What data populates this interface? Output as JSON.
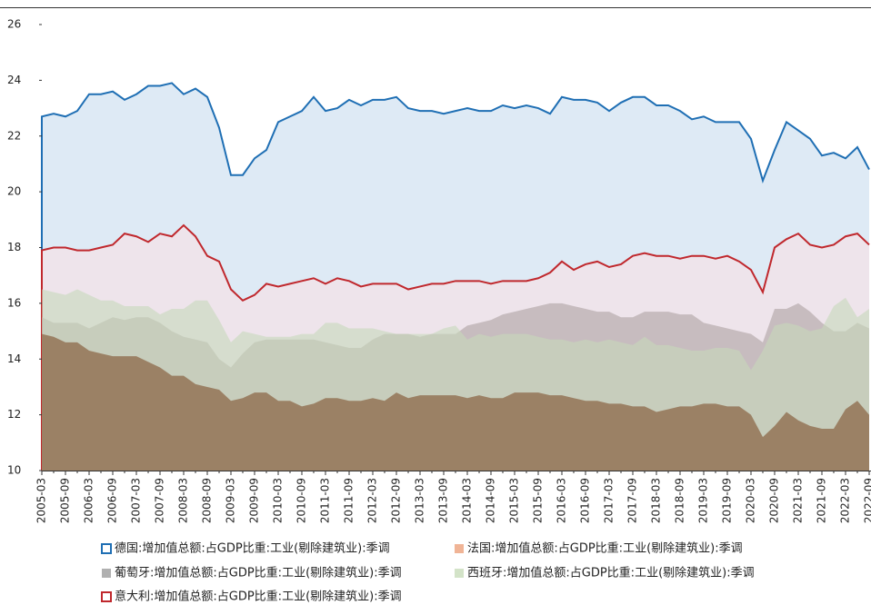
{
  "chart_data": {
    "type": "area",
    "categories": [
      "2005-03",
      null,
      "2005-09",
      null,
      "2006-03",
      null,
      "2006-09",
      null,
      "2007-03",
      null,
      "2007-09",
      null,
      "2008-03",
      null,
      "2008-09",
      null,
      "2009-03",
      null,
      "2009-09",
      null,
      "2010-03",
      null,
      "2010-09",
      null,
      "2011-03",
      null,
      "2011-09",
      null,
      "2012-03",
      null,
      "2012-09",
      null,
      "2013-03",
      null,
      "2013-09",
      null,
      "2014-03",
      null,
      "2014-09",
      null,
      "2015-03",
      null,
      "2015-09",
      null,
      "2016-03",
      null,
      "2016-09",
      null,
      "2017-03",
      null,
      "2017-09",
      null,
      "2018-03",
      null,
      "2018-09",
      null,
      "2019-03",
      null,
      "2019-09",
      null,
      "2020-03",
      null,
      "2020-09",
      null,
      "2021-03",
      null,
      "2021-09",
      null,
      "2022-03",
      null,
      "2022-09"
    ],
    "ylim": [
      10,
      26
    ],
    "yticks": [
      10,
      12,
      14,
      16,
      18,
      20,
      22,
      24,
      26
    ],
    "series": [
      {
        "name": "德国:增加值总额:占GDP比重:工业(剔除建筑业):季调",
        "color": "#1f6fb4",
        "fill": "#dde9f5",
        "outline": true,
        "values": [
          22.7,
          22.8,
          22.7,
          22.9,
          23.5,
          23.5,
          23.6,
          23.3,
          23.5,
          23.8,
          23.8,
          23.9,
          23.5,
          23.7,
          23.4,
          22.3,
          20.6,
          20.6,
          21.2,
          21.5,
          22.5,
          22.7,
          22.9,
          23.4,
          22.9,
          23.0,
          23.3,
          23.1,
          23.3,
          23.3,
          23.4,
          23.0,
          22.9,
          22.9,
          22.8,
          22.9,
          23.0,
          22.9,
          22.9,
          23.1,
          23.0,
          23.1,
          23.0,
          22.8,
          23.4,
          23.3,
          23.3,
          23.2,
          22.9,
          23.2,
          23.4,
          23.4,
          23.1,
          23.1,
          22.9,
          22.6,
          22.7,
          22.5,
          22.5,
          22.5,
          21.9,
          20.4,
          21.5,
          22.5,
          22.2,
          21.9,
          21.3,
          21.4,
          21.2,
          21.6,
          20.8
        ]
      },
      {
        "name": "法国:增加值总额:占GDP比重:工业(剔除建筑业):季调",
        "color": "#f0b496",
        "fill": "#9a7e62",
        "outline": false,
        "values": [
          14.9,
          14.8,
          14.6,
          14.6,
          14.3,
          14.2,
          14.1,
          14.1,
          14.1,
          13.9,
          13.7,
          13.4,
          13.4,
          13.1,
          13.0,
          12.9,
          12.5,
          12.6,
          12.8,
          12.8,
          12.5,
          12.5,
          12.3,
          12.4,
          12.6,
          12.6,
          12.5,
          12.5,
          12.6,
          12.5,
          12.8,
          12.6,
          12.7,
          12.7,
          12.7,
          12.7,
          12.6,
          12.7,
          12.6,
          12.6,
          12.8,
          12.8,
          12.8,
          12.7,
          12.7,
          12.6,
          12.5,
          12.5,
          12.4,
          12.4,
          12.3,
          12.3,
          12.1,
          12.2,
          12.3,
          12.3,
          12.4,
          12.4,
          12.3,
          12.3,
          12.0,
          11.2,
          11.6,
          12.1,
          11.8,
          11.6,
          11.5,
          11.5,
          12.2,
          12.5,
          12.0
        ]
      },
      {
        "name": "葡萄牙:增加值总额:占GDP比重:工业(剔除建筑业):季调",
        "color": "#b0b0b0",
        "fill": "#ada2a2",
        "outline": false,
        "values": [
          15.5,
          15.3,
          15.3,
          15.3,
          15.1,
          15.3,
          15.5,
          15.4,
          15.5,
          15.5,
          15.3,
          15.0,
          14.8,
          14.7,
          14.6,
          14.0,
          13.7,
          14.2,
          14.6,
          14.7,
          14.7,
          14.7,
          14.7,
          14.7,
          14.6,
          14.5,
          14.4,
          14.4,
          14.7,
          14.9,
          14.9,
          14.9,
          14.8,
          14.9,
          14.9,
          14.9,
          15.2,
          15.3,
          15.4,
          15.6,
          15.7,
          15.8,
          15.9,
          16.0,
          16.0,
          15.9,
          15.8,
          15.7,
          15.7,
          15.5,
          15.5,
          15.7,
          15.7,
          15.7,
          15.6,
          15.6,
          15.3,
          15.2,
          15.1,
          15.0,
          14.9,
          14.6,
          15.8,
          15.8,
          16.0,
          15.7,
          15.3,
          15.0,
          15.0,
          15.3,
          15.1
        ]
      },
      {
        "name": "西班牙:增加值总额:占GDP比重:工业(剔除建筑业):季调",
        "color": "#d3e3c8",
        "fill": "#c6d9ba",
        "outline": false,
        "values": [
          16.5,
          16.4,
          16.3,
          16.5,
          16.3,
          16.1,
          16.1,
          15.9,
          15.9,
          15.9,
          15.6,
          15.8,
          15.8,
          16.1,
          16.1,
          15.4,
          14.6,
          15.0,
          14.9,
          14.8,
          14.8,
          14.8,
          14.9,
          14.9,
          15.3,
          15.3,
          15.1,
          15.1,
          15.1,
          15.0,
          14.9,
          14.9,
          14.9,
          14.9,
          15.1,
          15.2,
          14.7,
          14.9,
          14.8,
          14.9,
          14.9,
          14.9,
          14.8,
          14.7,
          14.7,
          14.6,
          14.7,
          14.6,
          14.7,
          14.6,
          14.5,
          14.8,
          14.5,
          14.5,
          14.4,
          14.3,
          14.3,
          14.4,
          14.4,
          14.3,
          13.6,
          14.3,
          15.2,
          15.3,
          15.2,
          15.0,
          15.1,
          15.9,
          16.2,
          15.5,
          15.8
        ]
      },
      {
        "name": "意大利:增加值总额:占GDP比重:工业(剔除建筑业):季调",
        "color": "#c0282d",
        "fill": "#eee3ea",
        "outline": true,
        "values": [
          17.9,
          18.0,
          18.0,
          17.9,
          17.9,
          18.0,
          18.1,
          18.5,
          18.4,
          18.2,
          18.5,
          18.4,
          18.8,
          18.4,
          17.7,
          17.5,
          16.5,
          16.1,
          16.3,
          16.7,
          16.6,
          16.7,
          16.8,
          16.9,
          16.7,
          16.9,
          16.8,
          16.6,
          16.7,
          16.7,
          16.7,
          16.5,
          16.6,
          16.7,
          16.7,
          16.8,
          16.8,
          16.8,
          16.7,
          16.8,
          16.8,
          16.8,
          16.9,
          17.1,
          17.5,
          17.2,
          17.4,
          17.5,
          17.3,
          17.4,
          17.7,
          17.8,
          17.7,
          17.7,
          17.6,
          17.7,
          17.7,
          17.6,
          17.7,
          17.5,
          17.2,
          16.4,
          18.0,
          18.3,
          18.5,
          18.1,
          18.0,
          18.1,
          18.4,
          18.5,
          18.1
        ]
      }
    ]
  }
}
